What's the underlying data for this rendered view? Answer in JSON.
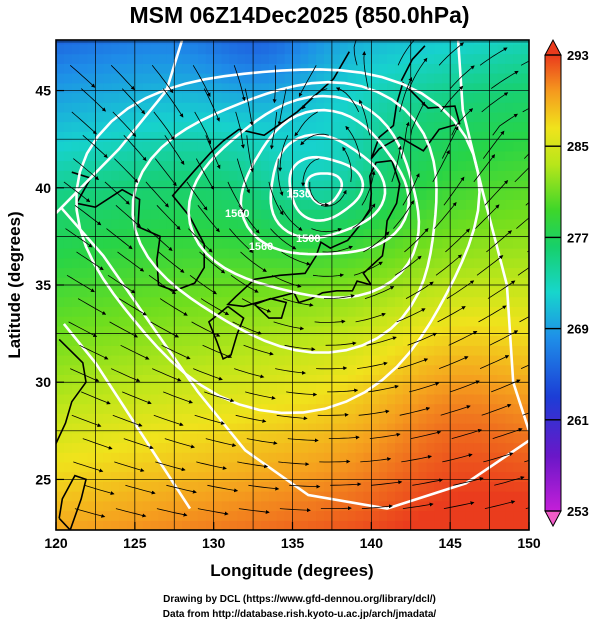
{
  "title": "MSM 06Z14Dec2025 (850.0hPa)",
  "xlabel": "Longitude (degrees)",
  "ylabel": "Latitude  (degrees)",
  "x_ticks": [
    "120",
    "125",
    "130",
    "135",
    "140",
    "145",
    "150"
  ],
  "y_ticks": [
    "25",
    "30",
    "35",
    "40",
    "45"
  ],
  "colorbar": {
    "min": 253,
    "max": 293,
    "labels": [
      "293",
      "285",
      "277",
      "269",
      "261",
      "253"
    ],
    "label_values": [
      293,
      285,
      277,
      269,
      261,
      253
    ]
  },
  "map_extent": {
    "lon": [
      120,
      150
    ],
    "lat": [
      22.4,
      47.6
    ]
  },
  "contour_labels": [
    {
      "text": "1530",
      "lon": 135.4,
      "lat": 39.5
    },
    {
      "text": "1500",
      "lon": 136.0,
      "lat": 37.2
    },
    {
      "text": "1560",
      "lon": 131.5,
      "lat": 38.5
    },
    {
      "text": "1560",
      "lon": 133.0,
      "lat": 36.8
    }
  ],
  "credits": {
    "line1": "Drawing by DCL (https://www.gfd-dennou.org/library/dcl/)",
    "line2": "Data from http://database.rish.kyoto-u.ac.jp/arch/jmadata/"
  }
}
